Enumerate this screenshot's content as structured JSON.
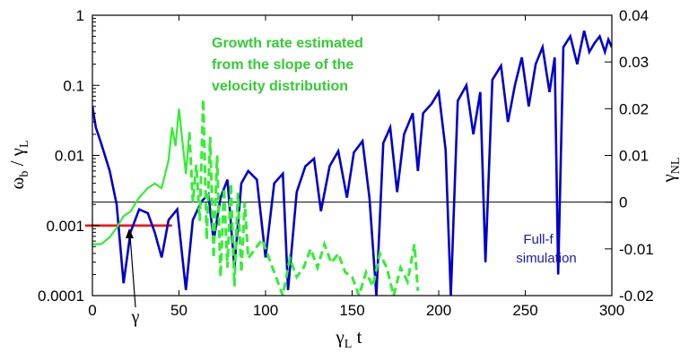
{
  "chart_data": {
    "type": "line",
    "xlabel": "γL t",
    "ylabel_left": "ωb / γL",
    "ylabel_right": "γNL",
    "xlim": [
      0,
      300
    ],
    "ylim_left": [
      0.0001,
      1
    ],
    "yscale_left": "log",
    "ylim_right": [
      -0.02,
      0.04
    ],
    "x_ticks": [
      "0",
      "50",
      "100",
      "150",
      "200",
      "250",
      "300"
    ],
    "y_left_ticks": [
      "1",
      "0.1",
      "0.01",
      "0.001",
      "0.0001"
    ],
    "y_right_ticks": [
      "0.04",
      "0.03",
      "0.02",
      "0.01",
      "0",
      "-0.01",
      "-0.02"
    ],
    "grid": false,
    "reference_line": {
      "axis": "right",
      "y": 0,
      "color": "#000000"
    },
    "gamma_line": {
      "axis": "left",
      "x": [
        0,
        46
      ],
      "y": 0.001,
      "color": "#ff0000"
    },
    "series": [
      {
        "color": "#0000cc",
        "axis": "left",
        "style": "solid",
        "points": [
          [
            0,
            0.05
          ],
          [
            2,
            0.025
          ],
          [
            5,
            0.015
          ],
          [
            10,
            0.006
          ],
          [
            14,
            0.002
          ],
          [
            18,
            0.00015
          ],
          [
            22,
            0.0008
          ],
          [
            27,
            0.0017
          ],
          [
            32,
            0.0015
          ],
          [
            36,
            0.0008
          ],
          [
            40,
            0.00035
          ],
          [
            44,
            0.0012
          ],
          [
            49,
            0.0017
          ],
          [
            54,
            0.00012
          ],
          [
            58,
            0.0012
          ],
          [
            63,
            0.0022
          ],
          [
            67,
            0.0028
          ],
          [
            70,
            0.0006
          ],
          [
            74,
            0.0025
          ],
          [
            78,
            0.0045
          ],
          [
            82,
            0.00025
          ],
          [
            86,
            0.004
          ],
          [
            90,
            0.006
          ],
          [
            95,
            0.0045
          ],
          [
            100,
            0.00035
          ],
          [
            105,
            0.004
          ],
          [
            110,
            0.0055
          ],
          [
            113,
            0.00012
          ],
          [
            118,
            0.003
          ],
          [
            123,
            0.007
          ],
          [
            128,
            0.009
          ],
          [
            132,
            0.0016
          ],
          [
            137,
            0.007
          ],
          [
            142,
            0.0115
          ],
          [
            147,
            0.0025
          ],
          [
            151,
            0.011
          ],
          [
            156,
            0.016
          ],
          [
            160,
            0.0025
          ],
          [
            164,
            0.0001
          ],
          [
            168,
            0.015
          ],
          [
            172,
            0.025
          ],
          [
            176,
            0.003
          ],
          [
            180,
            0.02
          ],
          [
            185,
            0.04
          ],
          [
            188,
            0.006
          ],
          [
            191,
            0.04
          ],
          [
            196,
            0.055
          ],
          [
            200,
            0.08
          ],
          [
            204,
            0.012
          ],
          [
            207,
            0.0001
          ],
          [
            211,
            0.06
          ],
          [
            216,
            0.1
          ],
          [
            220,
            0.02
          ],
          [
            224,
            0.08
          ],
          [
            227,
            0.0003
          ],
          [
            231,
            0.12
          ],
          [
            236,
            0.19
          ],
          [
            240,
            0.03
          ],
          [
            244,
            0.1
          ],
          [
            248,
            0.25
          ],
          [
            252,
            0.05
          ],
          [
            256,
            0.2
          ],
          [
            260,
            0.35
          ],
          [
            264,
            0.08
          ],
          [
            267,
            0.25
          ],
          [
            269,
            0.0002
          ],
          [
            272,
            0.35
          ],
          [
            276,
            0.5
          ],
          [
            280,
            0.2
          ],
          [
            284,
            0.6
          ],
          [
            287,
            0.3
          ],
          [
            290,
            0.4
          ],
          [
            293,
            0.5
          ],
          [
            296,
            0.3
          ],
          [
            298,
            0.45
          ],
          [
            300,
            0.35
          ]
        ]
      },
      {
        "color": "#33ee33",
        "axis": "right",
        "style": "solid-then-dashed",
        "dash_from_x": 57,
        "points": [
          [
            0,
            -0.009
          ],
          [
            5,
            -0.009
          ],
          [
            10,
            -0.0075
          ],
          [
            14,
            -0.0055
          ],
          [
            18,
            -0.003
          ],
          [
            22,
            -0.002
          ],
          [
            27,
            0.001
          ],
          [
            32,
            0.003
          ],
          [
            36,
            0.004
          ],
          [
            40,
            0.003
          ],
          [
            42,
            0.006
          ],
          [
            44,
            0.009
          ],
          [
            46,
            0.016
          ],
          [
            48,
            0.012
          ],
          [
            50,
            0.02
          ],
          [
            52,
            0.013
          ],
          [
            54,
            0.006
          ],
          [
            56,
            0.015
          ],
          [
            58,
            0.0
          ],
          [
            60,
            0.008
          ],
          [
            62,
            -0.004
          ],
          [
            64,
            0.022
          ],
          [
            66,
            -0.008
          ],
          [
            68,
            0.014
          ],
          [
            70,
            -0.012
          ],
          [
            72,
            0.01
          ],
          [
            74,
            -0.016
          ],
          [
            76,
            0.003
          ],
          [
            78,
            -0.014
          ],
          [
            80,
            0.004
          ],
          [
            82,
            -0.018
          ],
          [
            84,
            0.002
          ],
          [
            86,
            -0.015
          ],
          [
            88,
            0.0
          ],
          [
            90,
            -0.012
          ],
          [
            94,
            -0.01
          ],
          [
            98,
            -0.008
          ],
          [
            102,
            -0.012
          ],
          [
            106,
            -0.016
          ],
          [
            110,
            -0.02
          ],
          [
            114,
            -0.012
          ],
          [
            118,
            -0.016
          ],
          [
            122,
            -0.014
          ],
          [
            126,
            -0.01
          ],
          [
            130,
            -0.014
          ],
          [
            134,
            -0.009
          ],
          [
            138,
            -0.013
          ],
          [
            142,
            -0.011
          ],
          [
            146,
            -0.015
          ],
          [
            150,
            -0.016
          ],
          [
            154,
            -0.02
          ],
          [
            158,
            -0.015
          ],
          [
            162,
            -0.018
          ],
          [
            166,
            -0.011
          ],
          [
            170,
            -0.014
          ],
          [
            174,
            -0.02
          ],
          [
            178,
            -0.014
          ],
          [
            182,
            -0.017
          ],
          [
            186,
            -0.009
          ],
          [
            188,
            -0.019
          ]
        ]
      }
    ],
    "annotations": [
      {
        "lines": [
          "Growth rate estimated",
          "from the slope of the",
          "velocity distribution"
        ],
        "color": "#33cc33"
      },
      {
        "lines": [
          "Full-f",
          "simulation"
        ],
        "color": "#1a1aaa"
      },
      {
        "lines": [
          "γ"
        ],
        "color": "#000000"
      }
    ]
  }
}
